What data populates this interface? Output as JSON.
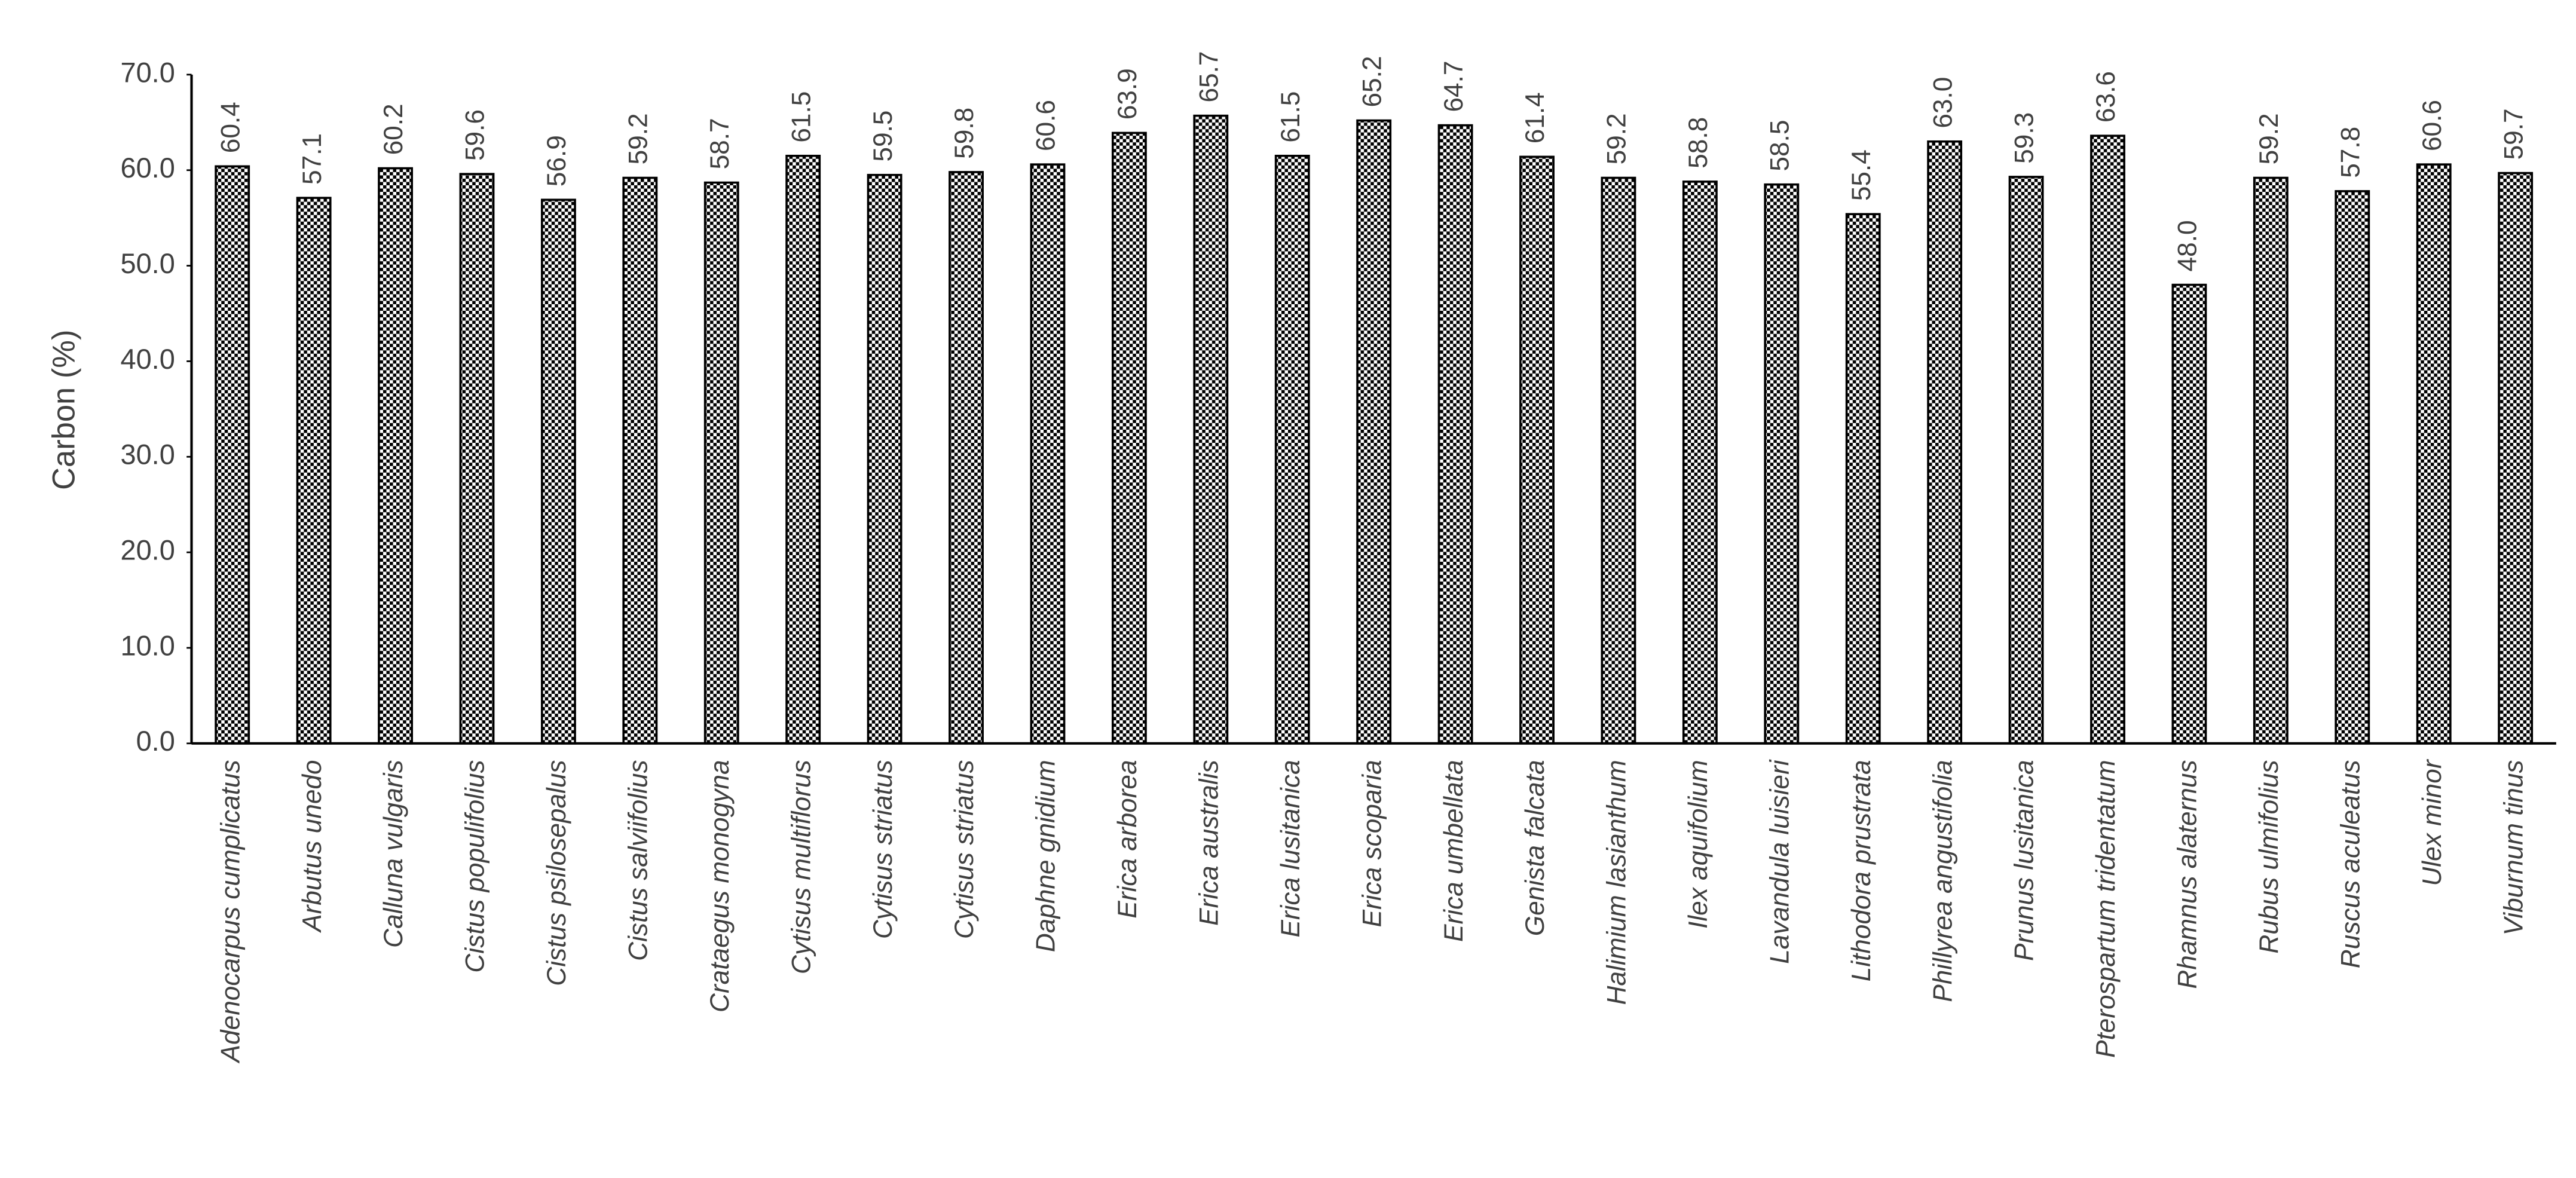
{
  "chart_data": {
    "type": "bar",
    "y_label": "Carbon (%)",
    "categories": [
      "Adenocarpus cumplicatus",
      "Arbutus unedo",
      "Calluna vulgaris",
      "Cistus populifolius",
      "Cistus psilosepalus",
      "Cistus salviifolius",
      "Crataegus monogyna",
      "Cytisus multiflorus",
      "Cytisus striatus",
      "Cytisus striatus",
      "Daphne gnidium",
      "Erica arborea",
      "Erica australis",
      "Erica lusitanica",
      "Erica scoparia",
      "Erica umbellata",
      "Genista falcata",
      "Halimium lasianthum",
      "Ilex aquifolium",
      "Lavandula luisieri",
      "Lithodora prustrata",
      "Phillyrea angustifolia",
      "Prunus lusitanica",
      "Pterospartum tridentatum",
      "Rhamnus alaternus",
      "Rubus ulmifolius",
      "Ruscus aculeatus",
      "Ulex minor",
      "Viburnum tinus"
    ],
    "values": [
      60.4,
      57.1,
      60.2,
      59.6,
      56.9,
      59.2,
      58.7,
      61.5,
      59.5,
      59.8,
      60.6,
      63.9,
      65.7,
      61.5,
      65.2,
      64.7,
      61.4,
      59.2,
      58.8,
      58.5,
      55.4,
      63.0,
      59.3,
      63.6,
      48.0,
      59.2,
      57.8,
      60.6,
      59.7
    ],
    "value_labels": [
      "60.4",
      "57.1",
      "60.2",
      "59.6",
      "56.9",
      "59.2",
      "58.7",
      "61.5",
      "59.5",
      "59.8",
      "60.6",
      "63.9",
      "65.7",
      "61.5",
      "65.2",
      "64.7",
      "61.4",
      "59.2",
      "58.8",
      "58.5",
      "55.4",
      "63.0",
      "59.3",
      "63.6",
      "48.0",
      "59.2",
      "57.8",
      "60.6",
      "59.7"
    ],
    "color": "#000000",
    "ylim": [
      0,
      70
    ],
    "yticks": [
      {
        "value": 0,
        "label": "0.0"
      },
      {
        "value": 10,
        "label": "10.0"
      },
      {
        "value": 20,
        "label": "20.0"
      },
      {
        "value": 30,
        "label": "30.0"
      },
      {
        "value": 40,
        "label": "40.0"
      },
      {
        "value": 50,
        "label": "50.0"
      },
      {
        "value": 60,
        "label": "60.0"
      },
      {
        "value": 70,
        "label": "70.0"
      }
    ],
    "grid": false
  }
}
